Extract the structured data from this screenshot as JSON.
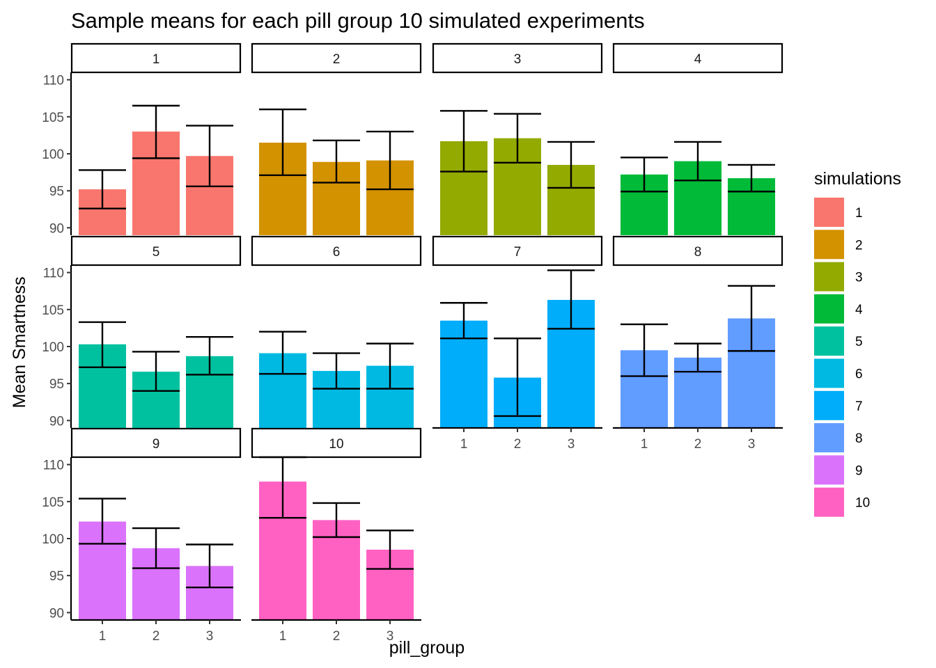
{
  "chart_data": {
    "type": "bar",
    "title": "Sample means for each pill group 10 simulated experiments",
    "xlabel": "pill_group",
    "ylabel": "Mean Smartness",
    "categories": [
      "1",
      "2",
      "3"
    ],
    "yticks": [
      "90",
      "95",
      "100",
      "105",
      "110"
    ],
    "ylim": [
      89,
      111
    ],
    "legend": {
      "title": "simulations",
      "position": "right"
    },
    "colors": [
      "#F8766D",
      "#D39200",
      "#93AA00",
      "#00BA38",
      "#00C19F",
      "#00B9E3",
      "#00ADFA",
      "#619CFF",
      "#DB72FB",
      "#FF61C3"
    ],
    "panels": [
      {
        "label": "1",
        "values": [
          95.2,
          103.0,
          99.7
        ],
        "err_low": [
          92.6,
          99.4,
          95.6
        ],
        "err_high": [
          97.8,
          106.5,
          103.8
        ]
      },
      {
        "label": "2",
        "values": [
          101.5,
          98.9,
          99.1
        ],
        "err_low": [
          97.1,
          96.1,
          95.2
        ],
        "err_high": [
          106.0,
          101.8,
          103.0
        ]
      },
      {
        "label": "3",
        "values": [
          101.7,
          102.1,
          98.5
        ],
        "err_low": [
          97.6,
          98.8,
          95.4
        ],
        "err_high": [
          105.8,
          105.4,
          101.6
        ]
      },
      {
        "label": "4",
        "values": [
          97.2,
          99.0,
          96.7
        ],
        "err_low": [
          94.9,
          96.4,
          94.9
        ],
        "err_high": [
          99.5,
          101.6,
          98.5
        ]
      },
      {
        "label": "5",
        "values": [
          100.3,
          96.6,
          98.7
        ],
        "err_low": [
          97.2,
          94.0,
          96.2
        ],
        "err_high": [
          103.3,
          99.3,
          101.3
        ]
      },
      {
        "label": "6",
        "values": [
          99.1,
          96.7,
          97.4
        ],
        "err_low": [
          96.3,
          94.3,
          94.3
        ],
        "err_high": [
          102.0,
          99.1,
          100.4
        ]
      },
      {
        "label": "7",
        "values": [
          103.5,
          95.8,
          106.3
        ],
        "err_low": [
          101.1,
          90.6,
          102.4
        ],
        "err_high": [
          105.9,
          101.1,
          110.3
        ]
      },
      {
        "label": "8",
        "values": [
          99.5,
          98.5,
          103.8
        ],
        "err_low": [
          96.0,
          96.6,
          99.4
        ],
        "err_high": [
          103.0,
          100.4,
          108.2
        ]
      },
      {
        "label": "9",
        "values": [
          102.3,
          98.7,
          96.3
        ],
        "err_low": [
          99.3,
          96.0,
          93.4
        ],
        "err_high": [
          105.4,
          101.4,
          99.2
        ]
      },
      {
        "label": "10",
        "values": [
          107.7,
          102.5,
          98.5
        ],
        "err_low": [
          102.8,
          100.2,
          95.9
        ],
        "err_high": [
          111.0,
          104.8,
          101.1
        ]
      }
    ]
  }
}
